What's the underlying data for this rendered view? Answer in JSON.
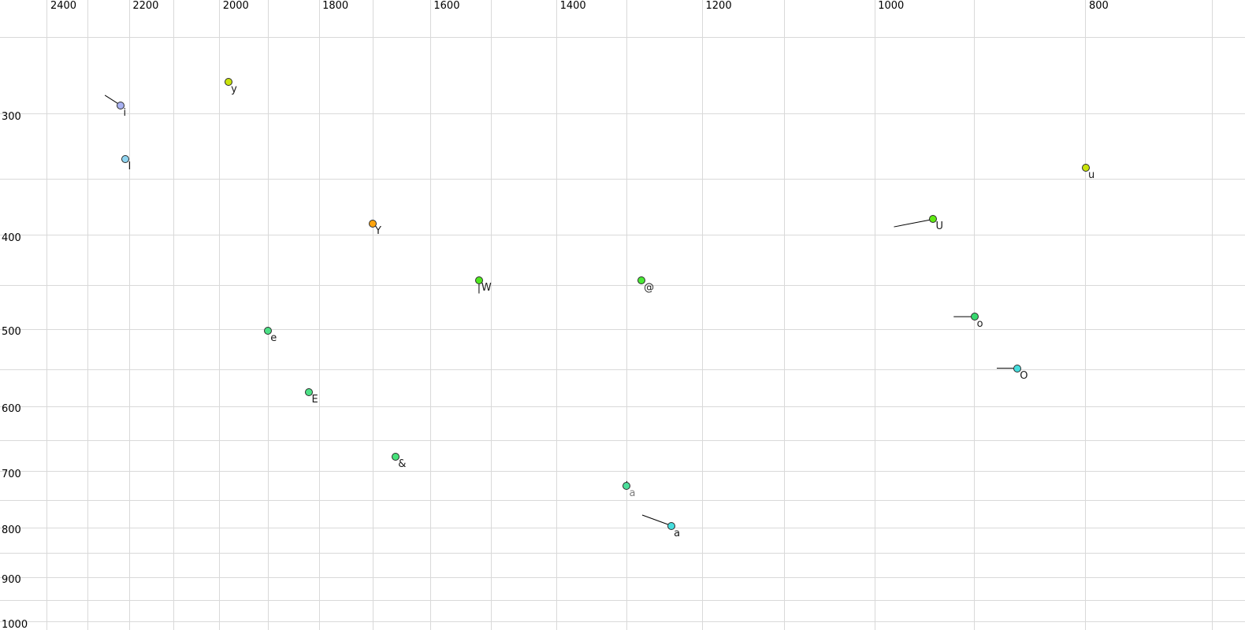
{
  "chart_data": {
    "type": "scatter",
    "title": "",
    "description": "Vowel formant plot: F2 (Hz) on top axis decreasing rightward, F1 (Hz) on left axis increasing downward, both log-scaled",
    "x_axis": {
      "position": "top",
      "direction": "decreasing-rightward",
      "scale": "log",
      "range_at_edges": [
        2523,
        676
      ],
      "gridline_ticks": [
        2400,
        2300,
        2200,
        2100,
        2000,
        1900,
        1800,
        1700,
        1600,
        1500,
        1400,
        1300,
        1200,
        1100,
        1000,
        900,
        800,
        700
      ],
      "labeled_ticks": [
        2400,
        2200,
        2000,
        1800,
        1600,
        1400,
        1200,
        1000,
        800
      ]
    },
    "y_axis": {
      "position": "left",
      "direction": "increasing-downward",
      "scale": "log",
      "range_at_edges": [
        229,
        1019
      ],
      "gridline_ticks": [
        250,
        300,
        350,
        400,
        450,
        500,
        550,
        600,
        650,
        700,
        750,
        800,
        850,
        900,
        950,
        1000
      ],
      "labeled_ticks": [
        300,
        400,
        500,
        600,
        700,
        800,
        900,
        1000
      ]
    },
    "grid": true,
    "grid_color": "#d9d9d9",
    "background": "#ffffff",
    "tick_label_color": "#000000",
    "point_outline_color": "#2b2b2b",
    "tail_color": "#000000",
    "points": [
      {
        "label": "i",
        "f2": 2220,
        "f1": 294,
        "fill": "#a9b2f2",
        "label_color": "#1a1a1a",
        "tail_to": [
          2258,
          287
        ]
      },
      {
        "label": "I",
        "f2": 2209,
        "f1": 334,
        "fill": "#8fd4f0",
        "label_color": "#1a1a1a",
        "tail_to": null
      },
      {
        "label": "y",
        "f2": 1981,
        "f1": 278,
        "fill": "#c9e30b",
        "label_color": "#1a1a1a",
        "tail_to": null
      },
      {
        "label": "Y",
        "f2": 1701,
        "f1": 389,
        "fill": "#ffa40e",
        "label_color": "#1a1a1a",
        "tail_to": null
      },
      {
        "label": "e",
        "f2": 1900,
        "f1": 501,
        "fill": "#4be085",
        "label_color": "#1a1a1a",
        "tail_to": null
      },
      {
        "label": "E",
        "f2": 1819,
        "f1": 580,
        "fill": "#4be085",
        "label_color": "#1a1a1a",
        "tail_to": null
      },
      {
        "label": "&",
        "f2": 1660,
        "f1": 676,
        "fill": "#46e27a",
        "label_color": "#1a1a1a",
        "tail_to": null
      },
      {
        "label": "W",
        "f2": 1520,
        "f1": 445,
        "fill": "#4fe81f",
        "label_color": "#1a1a1a",
        "tail_to": [
          1520,
          459
        ]
      },
      {
        "label": "@",
        "f2": 1280,
        "f1": 445,
        "fill": "#49ea35",
        "label_color": "#1a1a1a",
        "tail_to": null
      },
      {
        "label": "a",
        "f2": 1300,
        "f1": 724,
        "fill": "#4cdf9b",
        "label_color": "#7d7d7d",
        "tail_to": [
          1300,
          716
        ]
      },
      {
        "label": "a",
        "f2": 1240,
        "f1": 796,
        "fill": "#46dede",
        "label_color": "#1a1a1a",
        "tail_to": [
          1279,
          776
        ]
      },
      {
        "label": "u",
        "f2": 800,
        "f1": 341,
        "fill": "#c9e30b",
        "label_color": "#1a1a1a",
        "tail_to": null
      },
      {
        "label": "U",
        "f2": 940,
        "f1": 385,
        "fill": "#5fe912",
        "label_color": "#1a1a1a",
        "tail_to": [
          980,
          392
        ]
      },
      {
        "label": "o",
        "f2": 900,
        "f1": 485,
        "fill": "#37d96e",
        "label_color": "#1a1a1a",
        "tail_to": [
          920,
          485
        ]
      },
      {
        "label": "O",
        "f2": 860,
        "f1": 548,
        "fill": "#46dede",
        "label_color": "#1a1a1a",
        "tail_to": [
          879,
          548
        ]
      }
    ]
  }
}
